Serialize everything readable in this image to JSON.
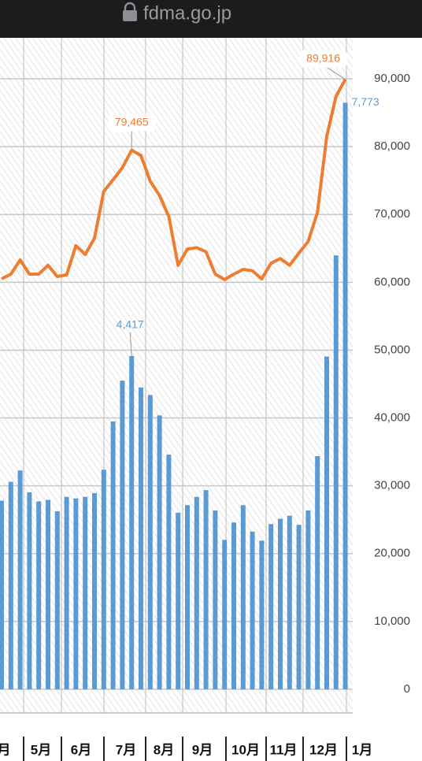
{
  "browser": {
    "url": "fdma.go.jp"
  },
  "chart_data": {
    "type": "bar-line",
    "categories": [
      null,
      null,
      null,
      null,
      null,
      null,
      null,
      null,
      null,
      null,
      null,
      null,
      null,
      null,
      null,
      null,
      null,
      null,
      null,
      null,
      null,
      null,
      null,
      null,
      null,
      null,
      null,
      null,
      null,
      null,
      null,
      null,
      null,
      null,
      null,
      null,
      null,
      null
    ],
    "month_labels": [
      "月",
      "5月",
      "6月",
      "7月",
      "8月",
      "9月",
      "10月",
      "11月",
      "12月",
      "1月"
    ],
    "series": [
      {
        "type": "bar",
        "axis": "y2",
        "color": "#5b9bd5",
        "values": [
          2500,
          2750,
          2900,
          2610,
          2490,
          2510,
          2360,
          2550,
          2530,
          2550,
          2600,
          2910,
          3550,
          4090,
          4417,
          4000,
          3900,
          3630,
          3110,
          2340,
          2440,
          2550,
          2640,
          2370,
          1980,
          2210,
          2440,
          2090,
          1970,
          2190,
          2260,
          2300,
          2180,
          2370,
          3090,
          4410,
          5750,
          7773
        ],
        "value_labels": [
          null,
          null,
          null,
          null,
          null,
          null,
          null,
          null,
          null,
          null,
          null,
          null,
          null,
          null,
          "4,417",
          null,
          null,
          null,
          null,
          null,
          null,
          null,
          null,
          null,
          null,
          null,
          null,
          null,
          null,
          null,
          null,
          null,
          null,
          null,
          null,
          null,
          null,
          "7,773"
        ]
      },
      {
        "type": "line",
        "color": "#ed7d31",
        "values": [
          60500,
          61200,
          63300,
          61200,
          61200,
          62500,
          60850,
          61100,
          65400,
          64100,
          66500,
          73400,
          75100,
          76900,
          79465,
          78700,
          74900,
          72800,
          69700,
          62500,
          64900,
          65100,
          64500,
          61200,
          60400,
          61200,
          61900,
          61700,
          60500,
          62800,
          63500,
          62500,
          64300,
          66000,
          70300,
          81500,
          87400,
          89916
        ],
        "value_labels": [
          null,
          null,
          null,
          null,
          null,
          null,
          null,
          null,
          null,
          null,
          null,
          null,
          null,
          null,
          "79,465",
          null,
          null,
          null,
          null,
          null,
          null,
          null,
          null,
          null,
          null,
          null,
          null,
          null,
          null,
          null,
          null,
          null,
          null,
          null,
          null,
          null,
          null,
          "89,916"
        ]
      }
    ],
    "ylim": [
      0,
      90000
    ],
    "yticks": [
      0,
      {
        "value": 10000,
        "label": "10,000"
      },
      {
        "value": 20000,
        "label": "20,000"
      },
      {
        "value": 30000,
        "label": "30,000"
      },
      {
        "value": 40000,
        "label": "40,000"
      },
      {
        "value": 50000,
        "label": "50,000"
      },
      {
        "value": 60000,
        "label": "60,000"
      },
      {
        "value": 70000,
        "label": "70,000"
      },
      {
        "value": 80000,
        "label": "80,000"
      },
      {
        "value": 90000,
        "label": "90,000"
      }
    ],
    "y2lim": [
      0,
      8090
    ],
    "grid": true
  }
}
